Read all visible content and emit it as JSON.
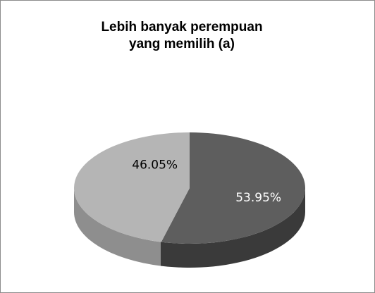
{
  "chart_data": {
    "type": "pie",
    "title": [
      "Lebih banyak perempuan",
      "yang memilih (a)"
    ],
    "slices": [
      {
        "value": 53.95,
        "label": "53.95%",
        "color": "#5e5e5e",
        "side_color": "#3a3a3a",
        "label_color": "#ffffff"
      },
      {
        "value": 46.05,
        "label": "46.05%",
        "color": "#b5b5b5",
        "side_color": "#8e8e8e",
        "label_color": "#000000"
      }
    ],
    "style": "3d",
    "legend": "none"
  }
}
